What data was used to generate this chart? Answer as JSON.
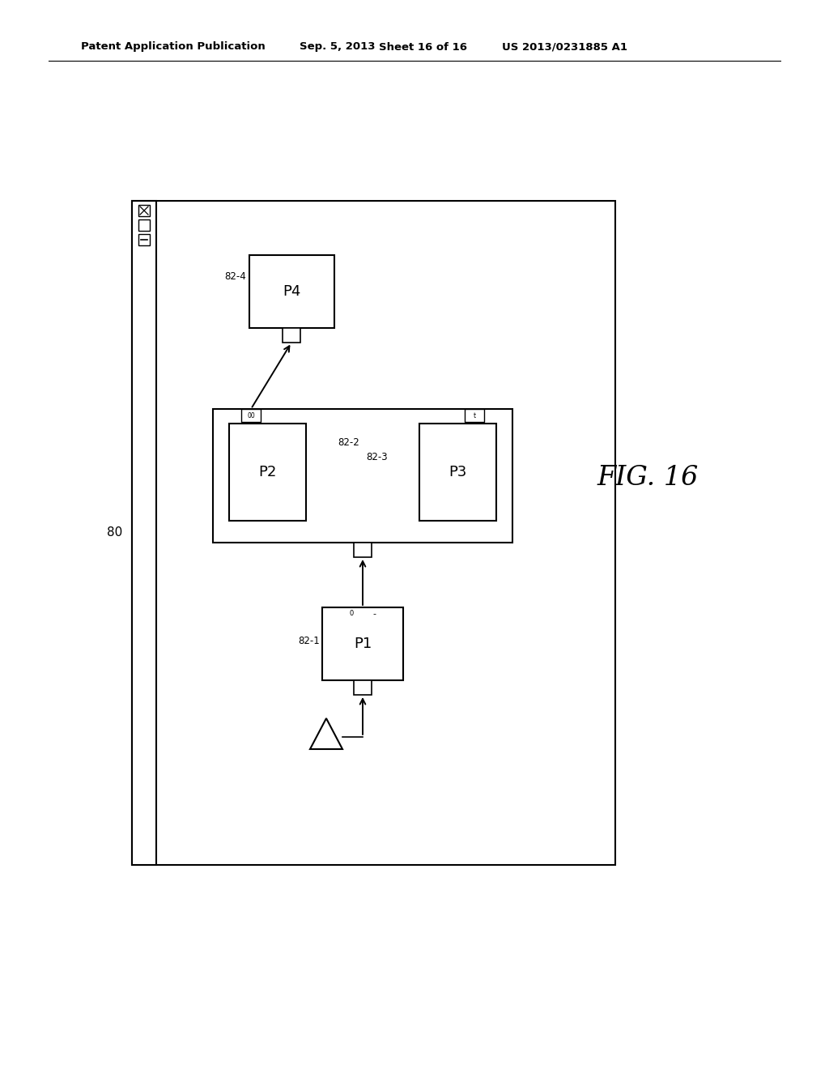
{
  "bg_color": "#ffffff",
  "header_text": "Patent Application Publication",
  "header_date": "Sep. 5, 2013",
  "header_sheet": "Sheet 16 of 16",
  "header_patent": "US 2013/0231885 A1",
  "fig_label": "FIG. 16",
  "outer_box_label": "80",
  "module_label_82_1": "82-1",
  "module_label_82_2": "82-2",
  "module_label_82_3": "82-3",
  "module_label_82_4": "82-4",
  "p1_label": "P1",
  "p2_label": "P2",
  "p3_label": "P3",
  "p4_label": "P4",
  "port_tl_text": "00",
  "port_tr_text": "t",
  "port_p1l_text": "0",
  "port_p1r_text": "-"
}
